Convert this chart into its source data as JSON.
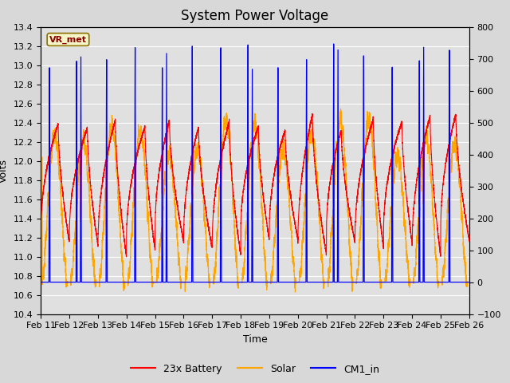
{
  "title": "System Power Voltage",
  "xlabel": "Time",
  "ylabel_left": "Volts",
  "ylim_left": [
    10.4,
    13.4
  ],
  "ylim_right": [
    -100,
    800
  ],
  "x_tick_labels": [
    "Feb 11",
    "Feb 12",
    "Feb 13",
    "Feb 14",
    "Feb 15",
    "Feb 16",
    "Feb 17",
    "Feb 18",
    "Feb 19",
    "Feb 20",
    "Feb 21",
    "Feb 22",
    "Feb 23",
    "Feb 24",
    "Feb 25",
    "Feb 26"
  ],
  "background_color": "#d8d8d8",
  "plot_bg_color": "#e0e0e0",
  "grid_color": "white",
  "annotation_text": "VR_met",
  "annotation_color": "#8b0000",
  "annotation_bg": "#f5f5c8",
  "annotation_border": "#8b7000",
  "title_fontsize": 12,
  "axis_fontsize": 9,
  "tick_fontsize": 8,
  "yticks_left": [
    10.4,
    10.6,
    10.8,
    11.0,
    11.2,
    11.4,
    11.6,
    11.8,
    12.0,
    12.2,
    12.4,
    12.6,
    12.8,
    13.0,
    13.2,
    13.4
  ],
  "yticks_right": [
    -100,
    0,
    100,
    200,
    300,
    400,
    500,
    600,
    700,
    800
  ]
}
